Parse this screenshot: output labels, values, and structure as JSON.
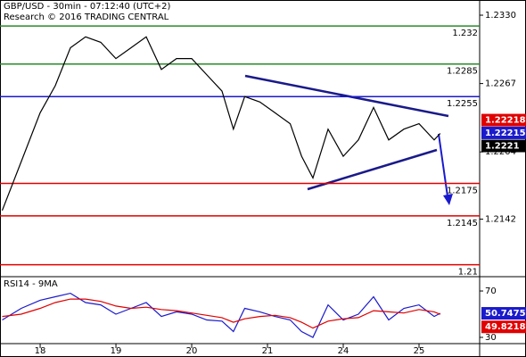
{
  "chart_data": [
    {
      "type": "line",
      "title": "GBP/USD - 30min - 07:12:40 (UTC+2)",
      "subtitle": "Research © 2016 TRADING CENTRAL",
      "x": [
        0.5,
        0.75,
        1.0,
        1.2,
        1.4,
        1.6,
        1.8,
        2.0,
        2.2,
        2.4,
        2.6,
        2.8,
        3.0,
        3.2,
        3.4,
        3.55,
        3.7,
        3.9,
        4.1,
        4.3,
        4.45,
        4.6,
        4.8,
        5.0,
        5.2,
        5.4,
        5.6,
        5.8,
        6.0,
        6.2,
        6.28
      ],
      "series": [
        {
          "color": "#000000",
          "values": [
            1.215,
            1.2195,
            1.224,
            1.2265,
            1.23,
            1.231,
            1.2305,
            1.229,
            1.23,
            1.231,
            1.228,
            1.229,
            1.229,
            1.2275,
            1.226,
            1.2225,
            1.2255,
            1.225,
            1.224,
            1.223,
            1.22,
            1.218,
            1.2225,
            1.22,
            1.2215,
            1.2245,
            1.2215,
            1.2225,
            1.223,
            1.2215,
            1.2221
          ]
        }
      ],
      "xlim": [
        0.47,
        6.8
      ],
      "ylim": [
        1.2089,
        1.2344
      ],
      "yticks": [
        {
          "value": 1.233,
          "label": "1.2330"
        },
        1.2267,
        1.2204,
        1.2142
      ],
      "levels": [
        {
          "value": 1.232,
          "color": "#2a8a2a"
        },
        {
          "value": 1.2285,
          "color": "#2a8a2a"
        },
        {
          "value": 1.2255,
          "color": "#1a1acd"
        },
        {
          "value": 1.2175,
          "color": "#e00000"
        },
        {
          "value": 1.2145,
          "color": "#e00000"
        },
        {
          "value": 1.21,
          "color": "#e00000"
        }
      ],
      "markers": [
        {
          "value": 1.22218,
          "color": "#e00000"
        },
        {
          "value": 1.22215,
          "color": "#1a1acd"
        },
        {
          "value": 1.2221,
          "color": "#000000"
        }
      ]
    },
    {
      "type": "line",
      "title": "RSI14 - 9MA",
      "x": [
        0.5,
        0.75,
        1.0,
        1.2,
        1.4,
        1.6,
        1.8,
        2.0,
        2.2,
        2.4,
        2.6,
        2.8,
        3.0,
        3.2,
        3.4,
        3.55,
        3.7,
        3.9,
        4.1,
        4.3,
        4.45,
        4.6,
        4.8,
        5.0,
        5.2,
        5.4,
        5.6,
        5.8,
        6.0,
        6.2,
        6.28
      ],
      "series": [
        {
          "color": "#1a1acd",
          "values": [
            45,
            55,
            62,
            65,
            68,
            60,
            58,
            50,
            55,
            60,
            48,
            52,
            50,
            45,
            44,
            35,
            55,
            52,
            48,
            45,
            35,
            30,
            58,
            45,
            50,
            65,
            45,
            55,
            58,
            48,
            50.7475
          ]
        },
        {
          "color": "#e00000",
          "values": [
            48,
            50,
            55,
            60,
            63,
            63,
            61,
            57,
            55,
            56,
            54,
            53,
            51,
            49,
            47,
            43,
            46,
            48,
            49,
            47,
            43,
            38,
            44,
            46,
            47,
            53,
            52,
            51,
            54,
            52,
            49.8218
          ]
        }
      ],
      "xlim": [
        0.47,
        6.8
      ],
      "ylim": [
        24.6,
        80.8
      ],
      "yticks": [
        30,
        70
      ],
      "xticks": [
        {
          "value": 1,
          "label": "18"
        },
        {
          "value": 2,
          "label": "19"
        },
        {
          "value": 3,
          "label": "20"
        },
        {
          "value": 4,
          "label": "21"
        },
        {
          "value": 5,
          "label": "24"
        },
        {
          "value": 6,
          "label": "25"
        }
      ],
      "markers": [
        {
          "value": 50.7475,
          "color": "#1a1acd"
        },
        {
          "value": 49.8218,
          "color": "#e00000"
        }
      ]
    }
  ]
}
